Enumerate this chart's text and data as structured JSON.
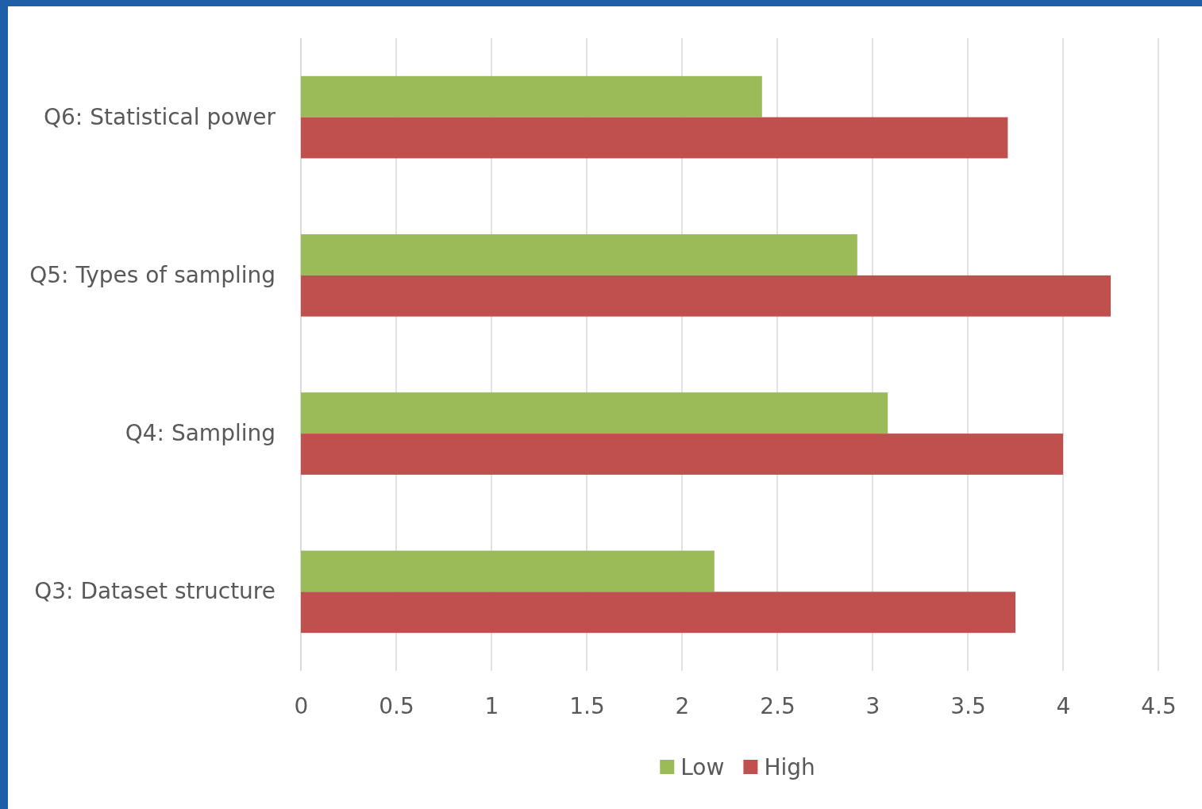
{
  "chart_data": {
    "type": "bar",
    "orientation": "horizontal",
    "categories": [
      "Q6: Statistical power",
      "Q5: Types of sampling",
      "Q4: Sampling",
      "Q3: Dataset structure"
    ],
    "series": [
      {
        "name": "Low",
        "color": "#9bbb59",
        "values": [
          2.42,
          2.92,
          3.08,
          2.17
        ]
      },
      {
        "name": "High",
        "color": "#c0504d",
        "values": [
          3.71,
          4.25,
          4.0,
          3.75
        ]
      }
    ],
    "xlim": [
      0,
      4.5
    ],
    "xticks": [
      0,
      0.5,
      1,
      1.5,
      2,
      2.5,
      3,
      3.5,
      4,
      4.5
    ],
    "grid": "x",
    "legend": "bottom"
  }
}
